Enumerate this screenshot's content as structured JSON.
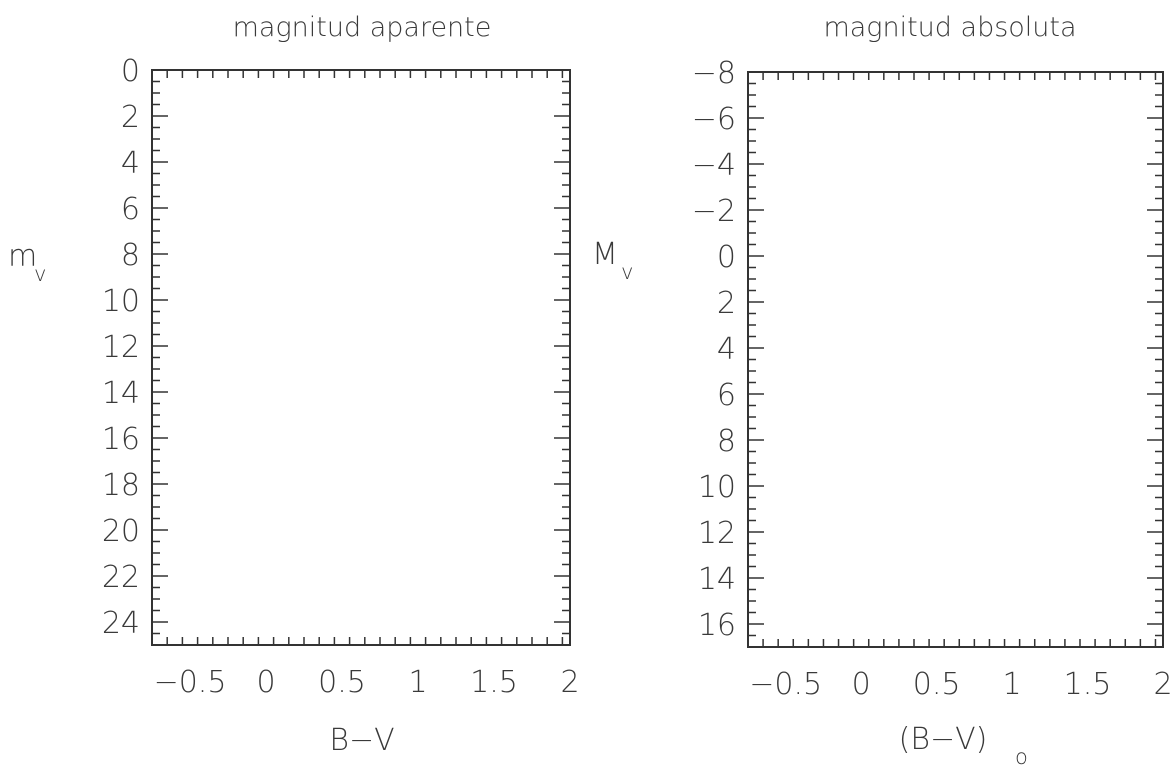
{
  "chart_data": [
    {
      "type": "scatter",
      "title": "magnitud aparente",
      "xlabel": "B−V",
      "ylabel": "m",
      "ylabel_subscript": "v",
      "xlim": [
        -0.75,
        2.0
      ],
      "ylim": [
        25,
        0
      ],
      "y_inverted": true,
      "xticks": [
        -0.5,
        0,
        0.5,
        1,
        1.5,
        2
      ],
      "xtick_labels": [
        "−0.5",
        "0",
        "0.5",
        "1",
        "1.5",
        "2"
      ],
      "yticks": [
        0,
        2,
        4,
        6,
        8,
        10,
        12,
        14,
        16,
        18,
        20,
        22,
        24
      ],
      "ytick_labels": [
        "0",
        "2",
        "4",
        "6",
        "8",
        "10",
        "12",
        "14",
        "16",
        "18",
        "20",
        "22",
        "24"
      ],
      "x_minor_step": 0.1,
      "y_minor_step": 0.5,
      "grid": false,
      "points": []
    },
    {
      "type": "scatter",
      "title": "magnitud absoluta",
      "xlabel": "(B−V)",
      "xlabel_subscript": "o",
      "ylabel": "M",
      "ylabel_subscript": "v",
      "xlim": [
        -0.75,
        2.0
      ],
      "ylim": [
        17,
        -8
      ],
      "y_inverted": true,
      "xticks": [
        -0.5,
        0,
        0.5,
        1,
        1.5,
        2
      ],
      "xtick_labels": [
        "−0.5",
        "0",
        "0.5",
        "1",
        "1.5",
        "2"
      ],
      "yticks": [
        -8,
        -6,
        -4,
        -2,
        0,
        2,
        4,
        6,
        8,
        10,
        12,
        14,
        16
      ],
      "ytick_labels": [
        "−8",
        "−6",
        "−4",
        "−2",
        "0",
        "2",
        "4",
        "6",
        "8",
        "10",
        "12",
        "14",
        "16"
      ],
      "x_minor_step": 0.1,
      "y_minor_step": 0.5,
      "grid": false,
      "points": []
    }
  ]
}
